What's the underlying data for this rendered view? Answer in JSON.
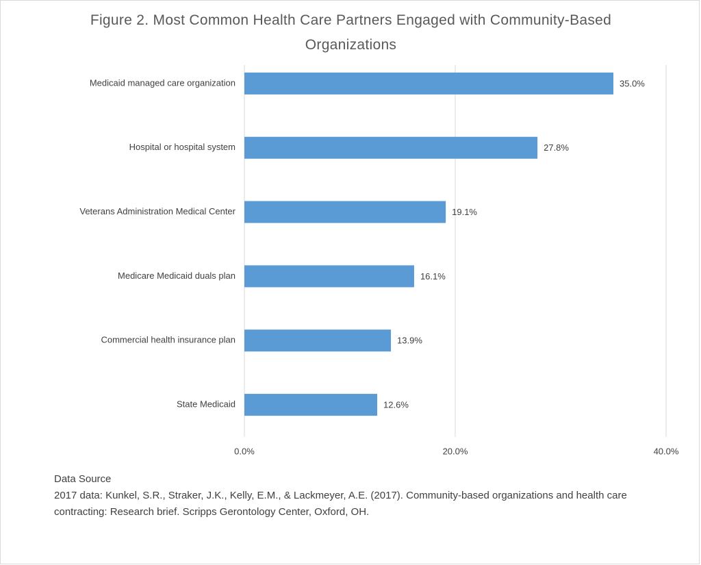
{
  "chart_data": {
    "type": "bar",
    "orientation": "horizontal",
    "title": "Figure 2. Most Common Health Care Partners Engaged with Community-Based Organizations",
    "categories": [
      "Medicaid managed care organization",
      "Hospital or hospital system",
      "Veterans Administration Medical Center",
      "Medicare Medicaid duals plan",
      "Commercial health insurance plan",
      "State Medicaid"
    ],
    "values": [
      35.0,
      27.8,
      19.1,
      16.1,
      13.9,
      12.6
    ],
    "value_labels": [
      "35.0%",
      "27.8%",
      "19.1%",
      "16.1%",
      "13.9%",
      "12.6%"
    ],
    "color": "#5b9bd5",
    "xlim": [
      0,
      40
    ],
    "xticks": [
      {
        "value": 0,
        "label": "0.0%"
      },
      {
        "value": 20,
        "label": "20.0%"
      },
      {
        "value": 40,
        "label": "40.0%"
      }
    ],
    "grid": true,
    "source_title": "Data Source",
    "source_text": "2017 data: Kunkel, S.R., Straker, J.K., Kelly, E.M., & Lackmeyer, A.E. (2017). Community-based organizations and health care contracting: Research brief. Scripps Gerontology Center, Oxford, OH."
  }
}
